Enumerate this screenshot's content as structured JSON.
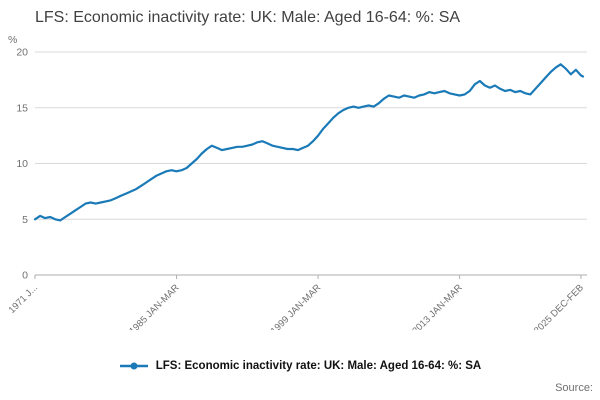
{
  "title": "LFS: Economic inactivity rate: UK: Male: Aged 16-64: %: SA",
  "source_label": "Source:",
  "legend": {
    "label": "LFS: Economic inactivity rate: UK: Male: Aged 16-64: %: SA"
  },
  "colors": {
    "line": "#1a7ab8",
    "grid": "#d9d9d9",
    "axis": "#aeaeae",
    "tick_text": "#707070",
    "title_text": "#414042"
  },
  "chart_data": {
    "type": "line",
    "title": "LFS: Economic inactivity rate: UK: Male: Aged 16-64: %: SA",
    "xlabel": "",
    "ylabel": "%",
    "xlim": [
      1971,
      2025.6
    ],
    "ylim": [
      0,
      20
    ],
    "yticks": [
      0,
      5,
      10,
      15,
      20
    ],
    "xticks": [
      {
        "x": 1971,
        "label": "1971 J..."
      },
      {
        "x": 1985,
        "label": "1985 JAN-MAR"
      },
      {
        "x": 1999,
        "label": "1999 JAN-MAR"
      },
      {
        "x": 2013,
        "label": "2013 JAN-MAR"
      },
      {
        "x": 2025,
        "label": "2025 DEC-FEB"
      }
    ],
    "grid": "horizontal",
    "legend_position": "bottom",
    "series": [
      {
        "name": "LFS: Economic inactivity rate: UK: Male: Aged 16-64: %: SA",
        "color": "#1a7ab8",
        "points": [
          [
            1971,
            5.0
          ],
          [
            1971.5,
            5.3
          ],
          [
            1972,
            5.1
          ],
          [
            1972.5,
            5.2
          ],
          [
            1973,
            5.0
          ],
          [
            1973.5,
            4.9
          ],
          [
            1974,
            5.2
          ],
          [
            1974.5,
            5.5
          ],
          [
            1975,
            5.8
          ],
          [
            1975.5,
            6.1
          ],
          [
            1976,
            6.4
          ],
          [
            1976.5,
            6.5
          ],
          [
            1977,
            6.4
          ],
          [
            1977.5,
            6.5
          ],
          [
            1978,
            6.6
          ],
          [
            1978.5,
            6.7
          ],
          [
            1979,
            6.9
          ],
          [
            1979.5,
            7.1
          ],
          [
            1980,
            7.3
          ],
          [
            1980.5,
            7.5
          ],
          [
            1981,
            7.7
          ],
          [
            1981.5,
            8.0
          ],
          [
            1982,
            8.3
          ],
          [
            1982.5,
            8.6
          ],
          [
            1983,
            8.9
          ],
          [
            1983.5,
            9.1
          ],
          [
            1984,
            9.3
          ],
          [
            1984.5,
            9.4
          ],
          [
            1985,
            9.3
          ],
          [
            1985.5,
            9.4
          ],
          [
            1986,
            9.6
          ],
          [
            1986.5,
            10.0
          ],
          [
            1987,
            10.4
          ],
          [
            1987.5,
            10.9
          ],
          [
            1988,
            11.3
          ],
          [
            1988.5,
            11.6
          ],
          [
            1989,
            11.4
          ],
          [
            1989.5,
            11.2
          ],
          [
            1990,
            11.3
          ],
          [
            1990.5,
            11.4
          ],
          [
            1991,
            11.5
          ],
          [
            1991.5,
            11.5
          ],
          [
            1992,
            11.6
          ],
          [
            1992.5,
            11.7
          ],
          [
            1993,
            11.9
          ],
          [
            1993.5,
            12.0
          ],
          [
            1994,
            11.8
          ],
          [
            1994.5,
            11.6
          ],
          [
            1995,
            11.5
          ],
          [
            1995.5,
            11.4
          ],
          [
            1996,
            11.3
          ],
          [
            1996.5,
            11.3
          ],
          [
            1997,
            11.2
          ],
          [
            1997.5,
            11.4
          ],
          [
            1998,
            11.6
          ],
          [
            1998.5,
            12.0
          ],
          [
            1999,
            12.5
          ],
          [
            1999.5,
            13.1
          ],
          [
            2000,
            13.6
          ],
          [
            2000.5,
            14.1
          ],
          [
            2001,
            14.5
          ],
          [
            2001.5,
            14.8
          ],
          [
            2002,
            15.0
          ],
          [
            2002.5,
            15.1
          ],
          [
            2003,
            15.0
          ],
          [
            2003.5,
            15.1
          ],
          [
            2004,
            15.2
          ],
          [
            2004.5,
            15.1
          ],
          [
            2005,
            15.4
          ],
          [
            2005.5,
            15.8
          ],
          [
            2006,
            16.1
          ],
          [
            2006.5,
            16.0
          ],
          [
            2007,
            15.9
          ],
          [
            2007.5,
            16.1
          ],
          [
            2008,
            16.0
          ],
          [
            2008.5,
            15.9
          ],
          [
            2009,
            16.1
          ],
          [
            2009.5,
            16.2
          ],
          [
            2010,
            16.4
          ],
          [
            2010.5,
            16.3
          ],
          [
            2011,
            16.4
          ],
          [
            2011.5,
            16.5
          ],
          [
            2012,
            16.3
          ],
          [
            2012.5,
            16.2
          ],
          [
            2013,
            16.1
          ],
          [
            2013.5,
            16.2
          ],
          [
            2014,
            16.5
          ],
          [
            2014.5,
            17.1
          ],
          [
            2015,
            17.4
          ],
          [
            2015.5,
            17.0
          ],
          [
            2016,
            16.8
          ],
          [
            2016.5,
            17.0
          ],
          [
            2017,
            16.7
          ],
          [
            2017.5,
            16.5
          ],
          [
            2018,
            16.6
          ],
          [
            2018.5,
            16.4
          ],
          [
            2019,
            16.5
          ],
          [
            2019.5,
            16.3
          ],
          [
            2020,
            16.2
          ],
          [
            2020.5,
            16.7
          ],
          [
            2021,
            17.2
          ],
          [
            2021.5,
            17.7
          ],
          [
            2022,
            18.2
          ],
          [
            2022.5,
            18.6
          ],
          [
            2023,
            18.9
          ],
          [
            2023.5,
            18.5
          ],
          [
            2024,
            18.0
          ],
          [
            2024.5,
            18.4
          ],
          [
            2025,
            17.9
          ],
          [
            2025.2,
            17.8
          ]
        ]
      }
    ]
  }
}
